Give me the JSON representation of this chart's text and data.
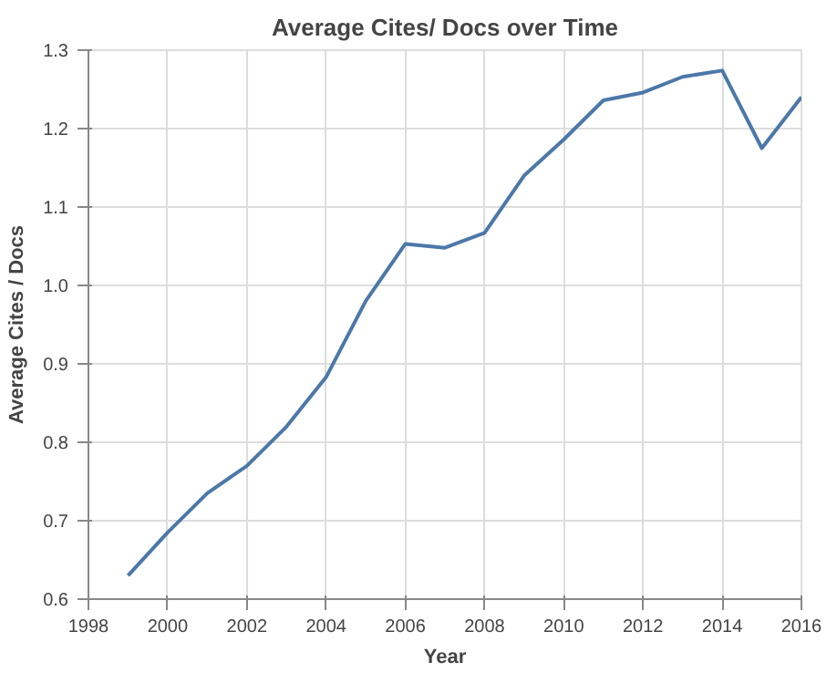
{
  "chart_data": {
    "type": "line",
    "title": "Average Cites/ Docs over Time",
    "xlabel": "Year",
    "ylabel": "Average Cites / Docs",
    "x": [
      1999,
      2000,
      2001,
      2002,
      2003,
      2004,
      2005,
      2006,
      2007,
      2008,
      2009,
      2010,
      2011,
      2012,
      2013,
      2014,
      2015,
      2016
    ],
    "series": [
      {
        "color": "#4c78a8",
        "values": [
          0.63,
          0.685,
          0.735,
          0.77,
          0.82,
          0.883,
          0.98,
          1.053,
          1.048,
          1.067,
          1.14,
          1.186,
          1.236,
          1.246,
          1.266,
          1.274,
          1.175,
          1.24
        ]
      }
    ],
    "xlim": [
      1998,
      2016
    ],
    "xticks": [
      1998,
      2000,
      2002,
      2004,
      2006,
      2008,
      2010,
      2012,
      2014,
      2016
    ],
    "ylim": [
      0.6,
      1.3
    ],
    "yticks": [
      0.6,
      0.7,
      0.8,
      0.9,
      {
        "value": 1.0,
        "label": "1.0"
      },
      1.1,
      1.2,
      1.3
    ],
    "grid": true,
    "marker": "none",
    "line_style": "solid"
  }
}
